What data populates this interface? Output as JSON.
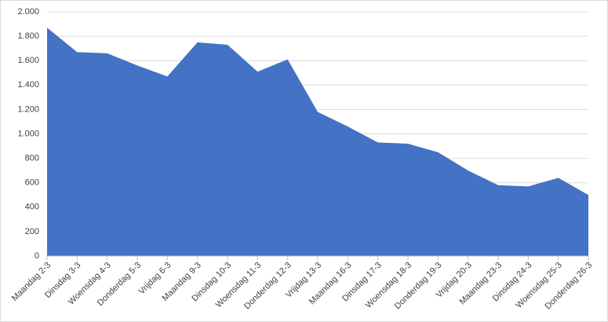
{
  "chart_data": {
    "type": "area",
    "categories": [
      "Maandag 2-3",
      "Dinsdag 3-3",
      "Woensdag 4-3",
      "Donderdag 5-3",
      "Vrijdag 6-3",
      "Maandag 9-3",
      "Dinsdag 10-3",
      "Woensdag 11-3",
      "Donderdag 12-3",
      "Vrijdag 13-3",
      "Maandag 16-3",
      "Dinsdag 17-3",
      "Woensdag 18-3",
      "Donderdag 19-3",
      "Vrijdag 20-3",
      "Maandag 23-3",
      "Dinsdag 24-3",
      "Woensdag 25-3",
      "Donderdag 26-3"
    ],
    "values": [
      1870,
      1670,
      1660,
      1560,
      1470,
      1750,
      1730,
      1510,
      1610,
      1180,
      1060,
      930,
      920,
      850,
      700,
      580,
      570,
      640,
      500
    ],
    "color": "#4472c4",
    "ylim": [
      0,
      2000
    ],
    "yticks": [
      0,
      200,
      400,
      600,
      800,
      {
        "value": 1000,
        "label": "1.000"
      },
      {
        "value": 1200,
        "label": "1.200"
      },
      {
        "value": 1400,
        "label": "1.400"
      },
      {
        "value": 1600,
        "label": "1.600"
      },
      {
        "value": 1800,
        "label": "1.800"
      },
      {
        "value": 2000,
        "label": "2.000"
      }
    ],
    "grid": true
  }
}
